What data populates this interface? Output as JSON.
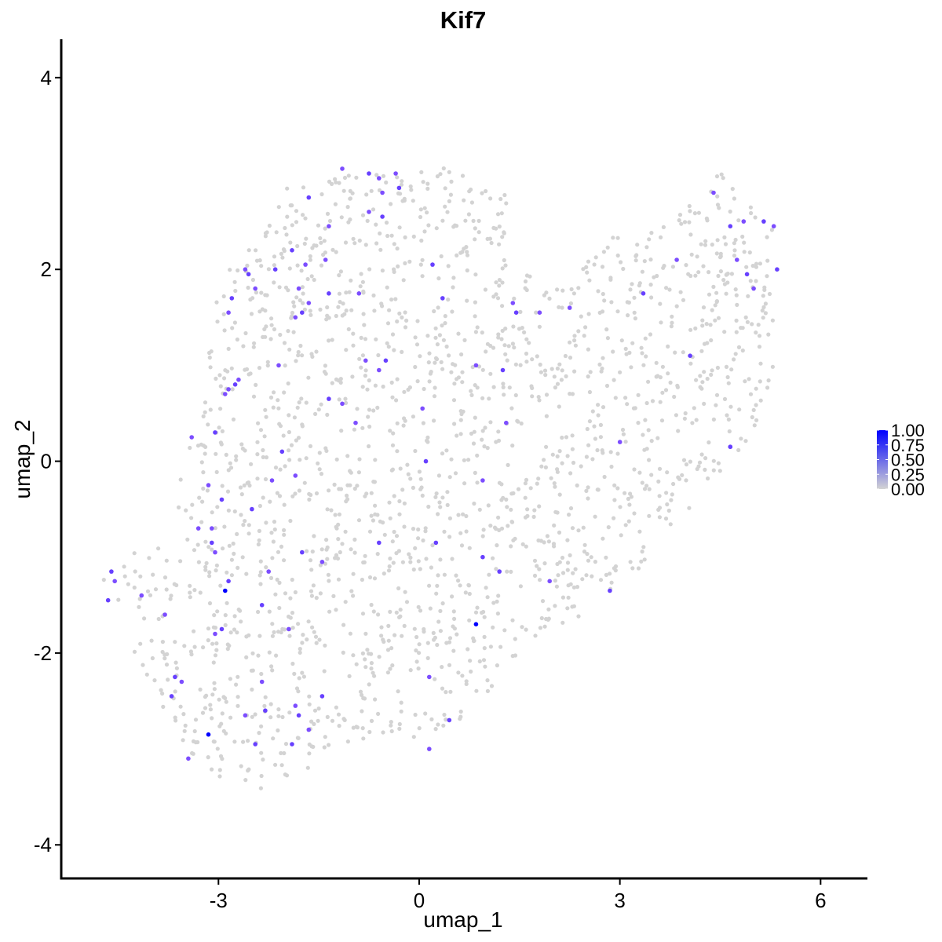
{
  "chart_data": {
    "type": "scatter",
    "title": "Kif7",
    "xlabel": "umap_1",
    "ylabel": "umap_2",
    "xlim": [
      -5.35,
      6.7
    ],
    "ylim": [
      -4.35,
      4.4
    ],
    "x_ticks": [
      -3,
      0,
      3,
      6
    ],
    "x_tick_labels": [
      "-3",
      "0",
      "3",
      "6"
    ],
    "y_ticks": [
      4,
      2,
      0,
      -2,
      -4
    ],
    "y_tick_labels": [
      "4",
      "2",
      "0",
      "-2",
      "-4"
    ],
    "grid": false,
    "legend": {
      "position": "right",
      "type": "colorbar",
      "range": [
        0,
        1
      ],
      "ticks": [
        1.0,
        0.75,
        0.5,
        0.25,
        0.0
      ],
      "labels": [
        "1.00",
        "0.75",
        "0.50",
        "0.25",
        "0.00"
      ],
      "low_color": "#d3d3d3",
      "high_color": "#0000ff"
    },
    "background_points": {
      "color": "#d3d3d3",
      "value": 0,
      "description_of_region": "about 1900 unexpressing cells spread over the outline",
      "outline": [
        [
          -4.8,
          -1.3
        ],
        [
          -4.2,
          -1.6
        ],
        [
          -4.3,
          -2.1
        ],
        [
          -3.8,
          -2.6
        ],
        [
          -3.5,
          -3.0
        ],
        [
          -3.0,
          -3.3
        ],
        [
          -2.5,
          -3.45
        ],
        [
          -1.9,
          -3.3
        ],
        [
          -1.4,
          -3.1
        ],
        [
          -0.6,
          -2.9
        ],
        [
          0.1,
          -3.0
        ],
        [
          0.8,
          -2.6
        ],
        [
          1.3,
          -2.2
        ],
        [
          1.7,
          -1.9
        ],
        [
          2.3,
          -1.7
        ],
        [
          2.8,
          -1.4
        ],
        [
          3.2,
          -1.2
        ],
        [
          3.6,
          -0.8
        ],
        [
          3.9,
          -0.6
        ],
        [
          4.3,
          -0.3
        ],
        [
          4.7,
          0.0
        ],
        [
          5.0,
          0.3
        ],
        [
          5.3,
          0.8
        ],
        [
          5.3,
          1.6
        ],
        [
          5.35,
          2.4
        ],
        [
          5.0,
          2.7
        ],
        [
          4.7,
          2.9
        ],
        [
          4.5,
          3.05
        ],
        [
          4.2,
          2.8
        ],
        [
          3.9,
          2.6
        ],
        [
          3.4,
          2.5
        ],
        [
          3.0,
          2.4
        ],
        [
          2.6,
          2.2
        ],
        [
          2.2,
          1.8
        ],
        [
          1.8,
          1.8
        ],
        [
          1.4,
          2.3
        ],
        [
          1.3,
          2.8
        ],
        [
          0.9,
          2.9
        ],
        [
          0.3,
          3.15
        ],
        [
          -0.3,
          3.0
        ],
        [
          -1.0,
          3.0
        ],
        [
          -1.5,
          2.9
        ],
        [
          -2.0,
          2.85
        ],
        [
          -2.3,
          2.4
        ],
        [
          -2.7,
          2.1
        ],
        [
          -3.0,
          1.9
        ],
        [
          -3.1,
          1.4
        ],
        [
          -3.2,
          0.8
        ],
        [
          -3.4,
          0.3
        ],
        [
          -3.6,
          -0.2
        ],
        [
          -3.8,
          -0.6
        ],
        [
          -4.2,
          -0.9
        ],
        [
          -4.6,
          -1.1
        ]
      ]
    },
    "expressing_points": {
      "x": [
        -1.65,
        -0.35,
        -0.75,
        -0.6,
        -0.3,
        -0.55,
        -1.15,
        -1.35,
        -1.9,
        -1.7,
        -2.15,
        -2.6,
        -2.55,
        -2.45,
        -2.8,
        -2.85,
        -1.4,
        -1.35,
        -1.8,
        -1.85,
        -1.75,
        -1.65,
        -2.1,
        -0.8,
        -0.5,
        -0.6,
        -2.7,
        -2.75,
        -2.9,
        -2.85,
        -1.35,
        -1.15,
        -0.95,
        0.05,
        0.1,
        -0.9,
        0.35,
        1.4,
        1.45,
        1.8,
        2.25,
        3.35,
        3.85,
        4.05,
        4.4,
        4.65,
        4.85,
        4.9,
        5.0,
        5.35,
        5.3,
        5.15,
        4.75,
        4.65,
        0.2,
        -0.75,
        -0.55,
        0.85,
        1.25,
        1.3,
        -3.05,
        -3.4,
        -3.15,
        -2.95,
        -3.1,
        -2.5,
        -2.2,
        -2.05,
        -1.85,
        -0.6,
        3.0,
        4.65,
        0.95,
        -2.25,
        -2.85,
        -1.45,
        -1.75,
        -3.3,
        -3.1,
        -3.05,
        -2.9,
        -2.95,
        -3.05,
        -4.6,
        -4.55,
        -4.65,
        -4.15,
        -3.8,
        -2.35,
        -1.95,
        -3.65,
        -3.55,
        -3.7,
        -2.6,
        -2.3,
        -1.85,
        -1.8,
        -1.65,
        -1.45,
        0.25,
        0.85,
        0.15,
        0.45,
        0.15,
        1.2,
        1.95,
        2.85,
        -3.15,
        -1.9,
        -3.45,
        -2.45,
        0.95,
        -2.35
      ],
      "y": [
        2.75,
        3.0,
        3.0,
        2.95,
        2.85,
        2.8,
        3.05,
        2.45,
        2.2,
        2.05,
        2.0,
        2.0,
        1.95,
        1.8,
        1.7,
        1.55,
        2.1,
        1.75,
        1.8,
        1.5,
        1.55,
        1.65,
        1.0,
        1.05,
        1.05,
        0.95,
        0.85,
        0.8,
        0.7,
        0.75,
        0.65,
        0.6,
        0.4,
        0.55,
        0.0,
        1.75,
        1.7,
        1.65,
        1.55,
        1.55,
        1.6,
        1.75,
        2.1,
        1.1,
        2.8,
        2.45,
        2.5,
        1.95,
        1.8,
        2.0,
        2.45,
        2.5,
        2.1,
        0.15,
        2.05,
        2.6,
        2.55,
        1.0,
        0.95,
        0.4,
        0.3,
        0.25,
        -0.25,
        -0.4,
        -0.7,
        -0.5,
        -0.2,
        0.1,
        -0.15,
        -0.85,
        0.2,
        0.15,
        -0.2,
        -1.15,
        -1.25,
        -1.05,
        -0.95,
        -0.7,
        -0.85,
        -0.95,
        -1.35,
        -1.75,
        -1.8,
        -1.15,
        -1.25,
        -1.45,
        -1.4,
        -1.6,
        -1.5,
        -1.75,
        -2.25,
        -2.3,
        -2.45,
        -2.65,
        -2.6,
        -2.55,
        -2.65,
        -2.8,
        -2.45,
        -0.85,
        -1.7,
        -2.25,
        -2.7,
        -3.0,
        -1.15,
        -1.25,
        -1.35,
        -2.85,
        -2.95,
        -3.1,
        -2.95,
        -1.0,
        -2.3
      ],
      "values": [
        0.75,
        0.7,
        0.75,
        0.7,
        0.75,
        0.7,
        0.7,
        0.7,
        0.75,
        0.7,
        0.75,
        0.7,
        0.75,
        0.7,
        0.75,
        0.7,
        0.7,
        0.75,
        0.7,
        0.7,
        0.75,
        0.7,
        0.7,
        0.7,
        0.75,
        0.7,
        0.7,
        0.75,
        0.7,
        0.7,
        0.75,
        0.7,
        0.7,
        0.7,
        0.75,
        0.7,
        0.75,
        0.7,
        0.75,
        0.7,
        0.7,
        0.75,
        0.7,
        0.75,
        0.7,
        0.75,
        0.7,
        0.75,
        0.7,
        0.75,
        0.7,
        0.75,
        0.7,
        0.7,
        0.75,
        0.7,
        0.75,
        0.7,
        0.75,
        0.7,
        0.75,
        0.7,
        0.7,
        0.75,
        0.7,
        0.75,
        0.7,
        0.75,
        0.7,
        0.75,
        0.7,
        0.75,
        0.7,
        0.7,
        0.75,
        0.7,
        0.75,
        0.7,
        0.75,
        0.7,
        1.0,
        0.75,
        0.7,
        0.75,
        0.7,
        0.75,
        0.7,
        0.7,
        0.75,
        0.7,
        0.75,
        0.7,
        0.75,
        0.7,
        0.75,
        0.7,
        0.75,
        0.7,
        0.75,
        0.75,
        1.0,
        0.7,
        0.75,
        0.7,
        0.75,
        0.7,
        0.75,
        1.0,
        0.75,
        0.7,
        0.75,
        0.75,
        0.7
      ]
    }
  }
}
